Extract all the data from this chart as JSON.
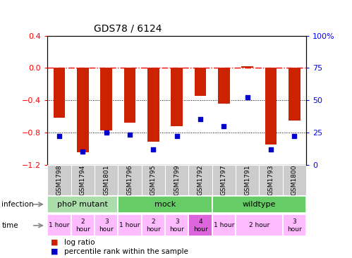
{
  "title": "GDS78 / 6124",
  "samples": [
    "GSM1798",
    "GSM1794",
    "GSM1801",
    "GSM1796",
    "GSM1795",
    "GSM1799",
    "GSM1792",
    "GSM1797",
    "GSM1791",
    "GSM1793",
    "GSM1800"
  ],
  "log_ratio": [
    -0.62,
    -1.05,
    -0.78,
    -0.68,
    -0.92,
    -0.72,
    -0.35,
    -0.44,
    0.02,
    -0.95,
    -0.65
  ],
  "percentile": [
    22,
    10,
    25,
    23,
    12,
    22,
    35,
    30,
    52,
    12,
    22
  ],
  "ylim_left": [
    -1.2,
    0.4
  ],
  "ylim_right": [
    0,
    100
  ],
  "yticks_left": [
    -1.2,
    -0.8,
    -0.4,
    0.0,
    0.4
  ],
  "yticks_right": [
    0,
    25,
    50,
    75,
    100
  ],
  "ytick_labels_right": [
    "0",
    "25",
    "50",
    "75",
    "100%"
  ],
  "hlines": [
    0.0,
    -0.4,
    -0.8
  ],
  "hline_styles": [
    "dashdot",
    "dotted",
    "dotted"
  ],
  "hline_colors": [
    "red",
    "black",
    "black"
  ],
  "bar_color": "#cc2200",
  "dot_color": "#0000cc",
  "infection_groups": [
    {
      "label": "phoP mutant",
      "start": 0,
      "end": 3,
      "color": "#aaddaa"
    },
    {
      "label": "mock",
      "start": 3,
      "end": 7,
      "color": "#66cc66"
    },
    {
      "label": "wildtype",
      "start": 7,
      "end": 11,
      "color": "#66cc66"
    }
  ],
  "time_spans": [
    {
      "start": 0,
      "end": 1,
      "label": "1 hour"
    },
    {
      "start": 1,
      "end": 2,
      "label": "2\nhour"
    },
    {
      "start": 2,
      "end": 3,
      "label": "3\nhour"
    },
    {
      "start": 3,
      "end": 4,
      "label": "1 hour"
    },
    {
      "start": 4,
      "end": 5,
      "label": "2\nhour"
    },
    {
      "start": 5,
      "end": 6,
      "label": "3\nhour"
    },
    {
      "start": 6,
      "end": 7,
      "label": "4\nhour"
    },
    {
      "start": 7,
      "end": 8,
      "label": "1 hour"
    },
    {
      "start": 8,
      "end": 10,
      "label": "2 hour"
    },
    {
      "start": 10,
      "end": 11,
      "label": "3\nhour"
    }
  ],
  "legend_bar_color": "#cc2200",
  "legend_dot_color": "#0000cc"
}
